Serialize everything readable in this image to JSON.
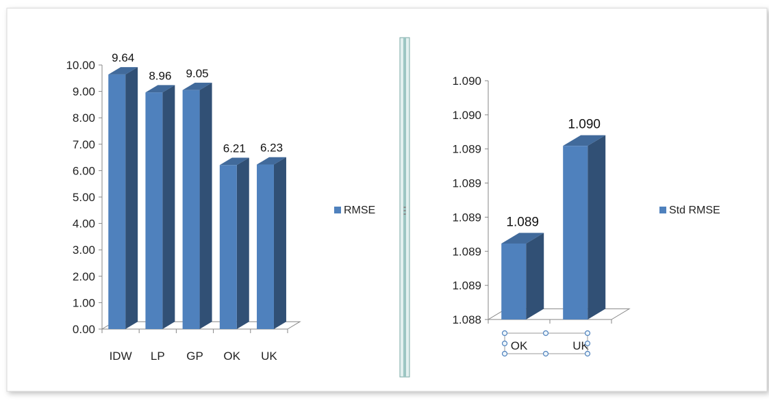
{
  "chart_data": [
    {
      "type": "bar",
      "style": "3d-column",
      "categories": [
        "IDW",
        "LP",
        "GP",
        "OK",
        "UK"
      ],
      "series": [
        {
          "name": "RMSE",
          "values": [
            9.64,
            8.96,
            9.05,
            6.21,
            6.23
          ]
        }
      ],
      "data_labels": [
        "9.64",
        "8.96",
        "9.05",
        "6.21",
        "6.23"
      ],
      "ylim": [
        0,
        10
      ],
      "yticks": [
        "0.00",
        "1.00",
        "2.00",
        "3.00",
        "4.00",
        "5.00",
        "6.00",
        "7.00",
        "8.00",
        "9.00",
        "10.00"
      ],
      "grid": false,
      "legend": "right",
      "color": "#4f81bd"
    },
    {
      "type": "bar",
      "style": "3d-column",
      "categories": [
        "OK",
        "UK"
      ],
      "series": [
        {
          "name": "Std RMSE",
          "values": [
            1.0887,
            1.0896
          ]
        }
      ],
      "data_labels": [
        "1.089",
        "1.090"
      ],
      "ylim": [
        1.088,
        1.0902
      ],
      "yticks": [
        "1.088",
        "1.089",
        "1.089",
        "1.089",
        "1.089",
        "1.089",
        "1.090",
        "1.090"
      ],
      "grid": false,
      "legend": "right",
      "color": "#4f81bd"
    }
  ]
}
